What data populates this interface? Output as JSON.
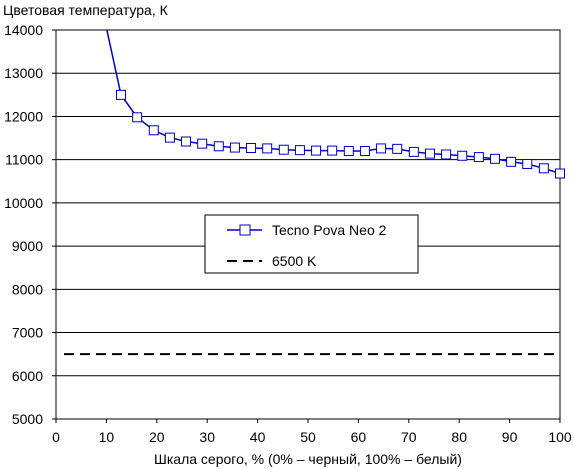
{
  "chart_data": {
    "type": "line",
    "title": "",
    "ylabel": "Цветовая температура, К",
    "xlabel": "Шкала серого, % (0% – черный, 100% – белый)",
    "xlim": [
      0,
      100
    ],
    "ylim": [
      5000,
      14000
    ],
    "x_ticks": [
      "0",
      "10",
      "20",
      "30",
      "40",
      "50",
      "60",
      "70",
      "80",
      "90",
      "100"
    ],
    "y_ticks": [
      "5000",
      "6000",
      "7000",
      "8000",
      "9000",
      "10000",
      "11000",
      "12000",
      "13000",
      "14000"
    ],
    "grid": "horizontal",
    "legend_position": "center",
    "series": [
      {
        "name": "Tecno Pova Neo 2",
        "color": "#0000cc",
        "marker": "square",
        "x": [
          10,
          12.9,
          16.1,
          19.4,
          22.6,
          25.8,
          29,
          32.3,
          35.5,
          38.7,
          41.9,
          45.2,
          48.4,
          51.6,
          54.8,
          58.1,
          61.3,
          64.5,
          67.7,
          71,
          74.2,
          77.4,
          80.6,
          83.9,
          87.1,
          90.3,
          93.5,
          96.8,
          100
        ],
        "y": [
          14050,
          12500,
          11980,
          11680,
          11510,
          11420,
          11370,
          11310,
          11280,
          11270,
          11260,
          11230,
          11220,
          11210,
          11210,
          11200,
          11200,
          11260,
          11250,
          11180,
          11140,
          11120,
          11090,
          11060,
          11020,
          10950,
          10900,
          10800,
          10680
        ]
      },
      {
        "name": "6500 K",
        "color": "#000000",
        "style": "dashed",
        "x": [
          0,
          100
        ],
        "y": [
          6500,
          6500
        ]
      }
    ]
  }
}
